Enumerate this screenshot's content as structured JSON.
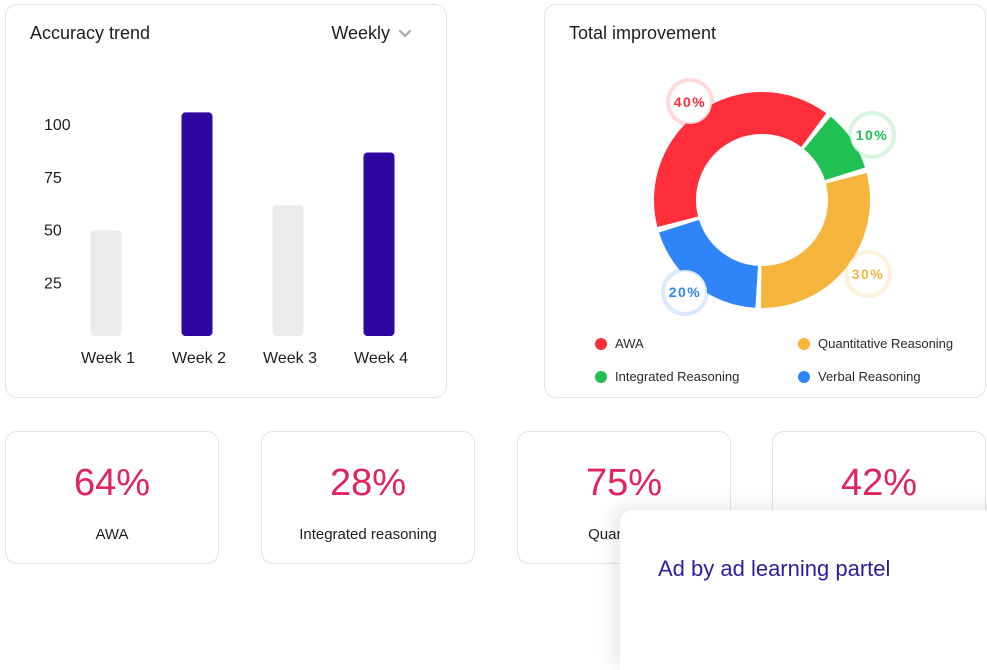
{
  "trend_card": {
    "title": "Accuracy trend",
    "period": "Weekly"
  },
  "chart_data": [
    {
      "type": "bar",
      "categories": [
        "Week 1",
        "Week 2",
        "Week 3",
        "Week 4"
      ],
      "values": [
        50,
        106,
        62,
        87
      ],
      "bar_colors": [
        "#ebebeb",
        "#2e06a0",
        "#ebebeb",
        "#2e06a0"
      ],
      "yticks": [
        25,
        50,
        75,
        100
      ],
      "ylim": [
        0,
        110
      ],
      "grid": false
    },
    {
      "type": "pie",
      "title": "Total improvement",
      "categories": [
        "AWA",
        "Integrated Reasoning",
        "Quantitative Reasoning",
        "Verbal Reasoning"
      ],
      "values": [
        40,
        10,
        30,
        20
      ],
      "labels": [
        "40%",
        "10%",
        "30%",
        "20%"
      ],
      "colors": [
        "#ff2e3a",
        "#21c053",
        "#f5b43c",
        "#2f85f8"
      ],
      "legend": "bottom"
    }
  ],
  "improve_card": {
    "title": "Total improvement",
    "legend": [
      {
        "label": "AWA",
        "color": "#ff2e3a"
      },
      {
        "label": "Quantitative Reasoning",
        "color": "#f5b43c"
      },
      {
        "label": "Integrated Reasoning",
        "color": "#21c053"
      },
      {
        "label": "Verbal Reasoning",
        "color": "#2f85f8"
      }
    ]
  },
  "stats": [
    {
      "value": "64%",
      "label": "AWA"
    },
    {
      "value": "28%",
      "label": "Integrated reasoning"
    },
    {
      "value": "75%",
      "label": "Quantitativ"
    },
    {
      "value": "42%",
      "label": ""
    }
  ],
  "toast": {
    "text": "Ad by ad learning partel"
  },
  "colors": {
    "accent": "#e0245e",
    "bar_primary": "#2e06a0",
    "bar_muted": "#ebebeb"
  }
}
